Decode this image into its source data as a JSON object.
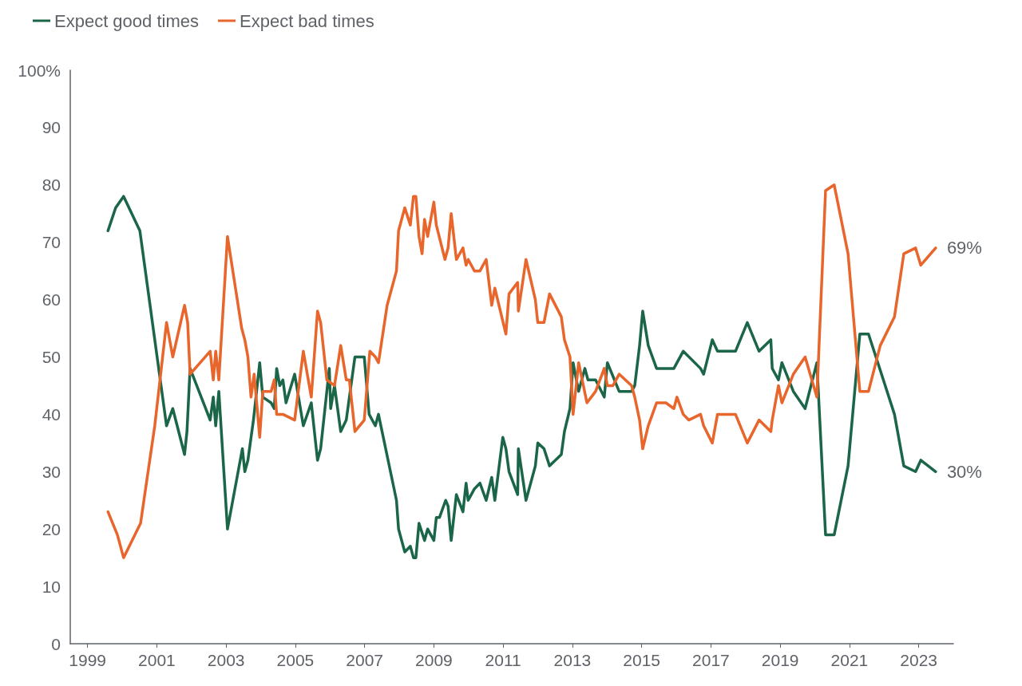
{
  "chart_data": {
    "type": "line",
    "legend": "top left",
    "grid": false,
    "marker": "none",
    "line_style": "solid",
    "xlim": [
      1998.5,
      2024
    ],
    "xticks": [
      1999,
      2001,
      2003,
      2005,
      2007,
      2009,
      2011,
      2013,
      2015,
      2017,
      2019,
      2021,
      2023
    ],
    "ylim": [
      0,
      100
    ],
    "yticks": [
      0,
      10,
      20,
      30,
      40,
      50,
      60,
      70,
      80,
      90,
      {
        "value": 100,
        "label": "100%"
      }
    ],
    "annotations": [
      {
        "text": "69%",
        "x": 2023.49,
        "y": 69
      },
      {
        "text": "30%",
        "x": 2023.49,
        "y": 30
      }
    ],
    "series": [
      {
        "name": "Expect good times",
        "color": "#1b6648",
        "x": [
          1999.59,
          1999.81,
          2000.04,
          2000.51,
          2001.28,
          2001.46,
          2001.8,
          2001.87,
          2001.96,
          2002.54,
          2002.63,
          2002.7,
          2002.79,
          2003.04,
          2003.47,
          2003.54,
          2003.63,
          2003.79,
          2003.97,
          2004.06,
          2004.3,
          2004.39,
          2004.46,
          2004.55,
          2004.64,
          2004.73,
          2004.98,
          2005.23,
          2005.46,
          2005.64,
          2005.73,
          2005.98,
          2006.02,
          2006.13,
          2006.31,
          2006.47,
          2006.72,
          2006.99,
          2007.13,
          2007.31,
          2007.4,
          2007.92,
          2007.98,
          2008.16,
          2008.32,
          2008.41,
          2008.48,
          2008.57,
          2008.73,
          2008.82,
          2009.0,
          2009.07,
          2009.16,
          2009.34,
          2009.41,
          2009.5,
          2009.65,
          2009.84,
          2009.93,
          2009.99,
          2010.17,
          2010.33,
          2010.51,
          2010.67,
          2010.76,
          2010.99,
          2011.08,
          2011.17,
          2011.42,
          2011.44,
          2011.66,
          2011.93,
          2012.0,
          2012.18,
          2012.34,
          2012.68,
          2012.77,
          2012.93,
          2013.02,
          2013.18,
          2013.36,
          2013.45,
          2013.67,
          2013.92,
          2014.01,
          2014.35,
          2014.71,
          2014.8,
          2014.94,
          2015.03,
          2015.19,
          2015.43,
          2015.93,
          2016.2,
          2016.7,
          2016.79,
          2017.04,
          2017.19,
          2017.71,
          2018.05,
          2018.39,
          2018.73,
          2018.77,
          2018.95,
          2019.05,
          2019.38,
          2019.72,
          2020.06,
          2020.31,
          2020.56,
          2020.96,
          2021.3,
          2021.55,
          2021.82,
          2022.3,
          2022.57,
          2022.91,
          2023.06,
          2023.49
        ],
        "values": [
          72,
          76,
          78,
          72,
          38,
          41,
          33,
          37,
          48,
          39,
          43,
          38,
          44,
          20,
          34,
          30,
          32,
          39,
          49,
          43,
          42,
          41,
          48,
          45,
          46,
          42,
          47,
          38,
          42,
          32,
          34,
          48,
          41,
          45,
          37,
          39,
          50,
          50,
          40,
          38,
          40,
          25,
          20,
          16,
          17,
          15,
          15,
          21,
          18,
          20,
          18,
          22,
          22,
          25,
          24,
          18,
          26,
          23,
          28,
          25,
          27,
          28,
          25,
          29,
          25,
          36,
          34,
          30,
          26,
          34,
          25,
          31,
          35,
          34,
          31,
          33,
          37,
          41,
          49,
          44,
          48,
          46,
          46,
          43,
          49,
          44,
          44,
          45,
          52,
          58,
          52,
          48,
          48,
          51,
          48,
          47,
          53,
          51,
          51,
          56,
          51,
          53,
          48,
          46,
          49,
          44,
          41,
          49,
          19,
          19,
          31,
          54,
          54,
          49,
          40,
          31,
          30,
          32,
          30
        ]
      },
      {
        "name": "Expect bad times",
        "color": "#e8652b",
        "x": [
          1999.59,
          1999.86,
          2000.04,
          2000.53,
          2000.94,
          2001.28,
          2001.46,
          2001.8,
          2001.89,
          2001.96,
          2002.54,
          2002.63,
          2002.7,
          2002.79,
          2003.04,
          2003.45,
          2003.54,
          2003.63,
          2003.72,
          2003.81,
          2003.97,
          2004.06,
          2004.3,
          2004.39,
          2004.46,
          2004.64,
          2004.98,
          2005.23,
          2005.46,
          2005.64,
          2005.73,
          2005.91,
          2006.13,
          2006.31,
          2006.47,
          2006.56,
          2006.72,
          2006.99,
          2007.15,
          2007.31,
          2007.4,
          2007.65,
          2007.92,
          2007.98,
          2008.16,
          2008.32,
          2008.41,
          2008.48,
          2008.57,
          2008.66,
          2008.73,
          2008.82,
          2009.0,
          2009.07,
          2009.32,
          2009.41,
          2009.5,
          2009.65,
          2009.84,
          2009.93,
          2009.99,
          2010.17,
          2010.33,
          2010.51,
          2010.67,
          2010.76,
          2011.08,
          2011.17,
          2011.42,
          2011.44,
          2011.66,
          2011.93,
          2012.0,
          2012.18,
          2012.34,
          2012.68,
          2012.77,
          2012.93,
          2013.02,
          2013.18,
          2013.42,
          2013.67,
          2013.92,
          2014.01,
          2014.17,
          2014.35,
          2014.71,
          2014.8,
          2014.94,
          2015.03,
          2015.19,
          2015.43,
          2015.7,
          2015.93,
          2016.02,
          2016.2,
          2016.36,
          2016.7,
          2016.79,
          2017.04,
          2017.19,
          2017.71,
          2018.05,
          2018.39,
          2018.73,
          2018.77,
          2018.95,
          2019.05,
          2019.38,
          2019.72,
          2020.06,
          2020.31,
          2020.56,
          2020.96,
          2021.3,
          2021.55,
          2021.89,
          2022.3,
          2022.57,
          2022.91,
          2023.06,
          2023.49
        ],
        "values": [
          23,
          19,
          15,
          21,
          38,
          56,
          50,
          59,
          56,
          47,
          51,
          46,
          51,
          46,
          71,
          55,
          53,
          50,
          43,
          47,
          36,
          44,
          44,
          46,
          40,
          40,
          39,
          51,
          43,
          58,
          56,
          46,
          45,
          52,
          46,
          46,
          37,
          39,
          51,
          50,
          49,
          59,
          65,
          72,
          76,
          73,
          78,
          78,
          71,
          68,
          74,
          71,
          77,
          73,
          67,
          69,
          75,
          67,
          69,
          66,
          67,
          65,
          65,
          67,
          59,
          62,
          54,
          61,
          63,
          58,
          67,
          60,
          56,
          56,
          61,
          57,
          53,
          50,
          40,
          49,
          42,
          44,
          48,
          45,
          45,
          47,
          45,
          43,
          39,
          34,
          38,
          42,
          42,
          41,
          43,
          40,
          39,
          40,
          38,
          35,
          40,
          40,
          35,
          39,
          37,
          39,
          45,
          42,
          47,
          50,
          43,
          79,
          80,
          68,
          44,
          44,
          52,
          57,
          68,
          69,
          66,
          69
        ]
      }
    ]
  }
}
